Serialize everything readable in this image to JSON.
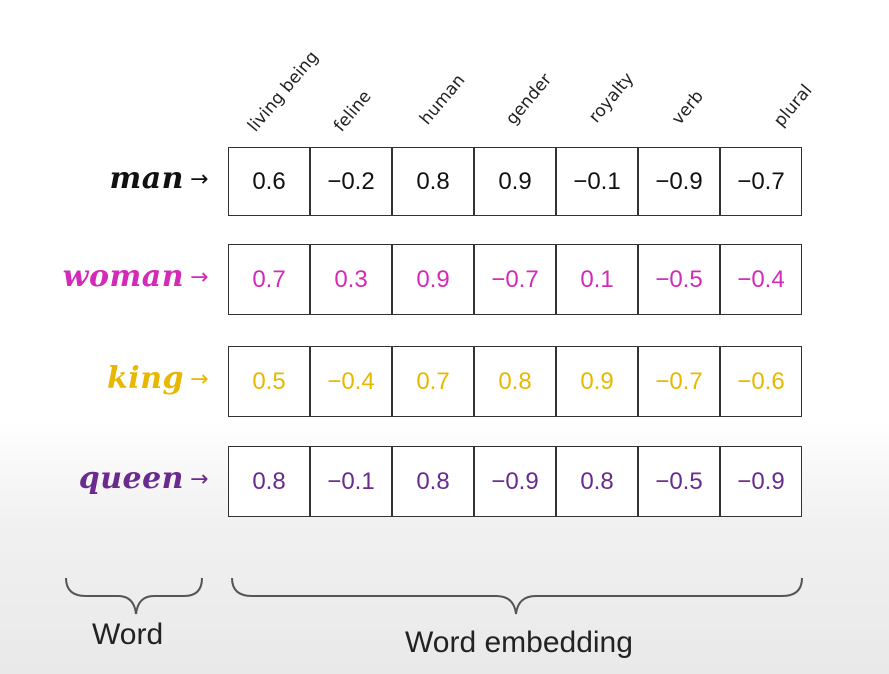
{
  "headers": [
    "living being",
    "feline",
    "human",
    "gender",
    "royalty",
    "verb",
    "plural"
  ],
  "rows": [
    {
      "word": "man",
      "color": "#111111",
      "values": [
        "0.6",
        "−0.2",
        "0.8",
        "0.9",
        "−0.1",
        "−0.9",
        "−0.7"
      ]
    },
    {
      "word": "woman",
      "color": "#d42ab8",
      "values": [
        "0.7",
        "0.3",
        "0.9",
        "−0.7",
        "0.1",
        "−0.5",
        "−0.4"
      ]
    },
    {
      "word": "king",
      "color": "#e8b800",
      "values": [
        "0.5",
        "−0.4",
        "0.7",
        "0.8",
        "0.9",
        "−0.7",
        "−0.6"
      ]
    },
    {
      "word": "queen",
      "color": "#6a2a8e",
      "values": [
        "0.8",
        "−0.1",
        "0.8",
        "−0.9",
        "0.8",
        "−0.5",
        "−0.9"
      ]
    }
  ],
  "arrow_symbol": "→",
  "labels": {
    "word": "Word",
    "embedding": "Word embedding"
  }
}
